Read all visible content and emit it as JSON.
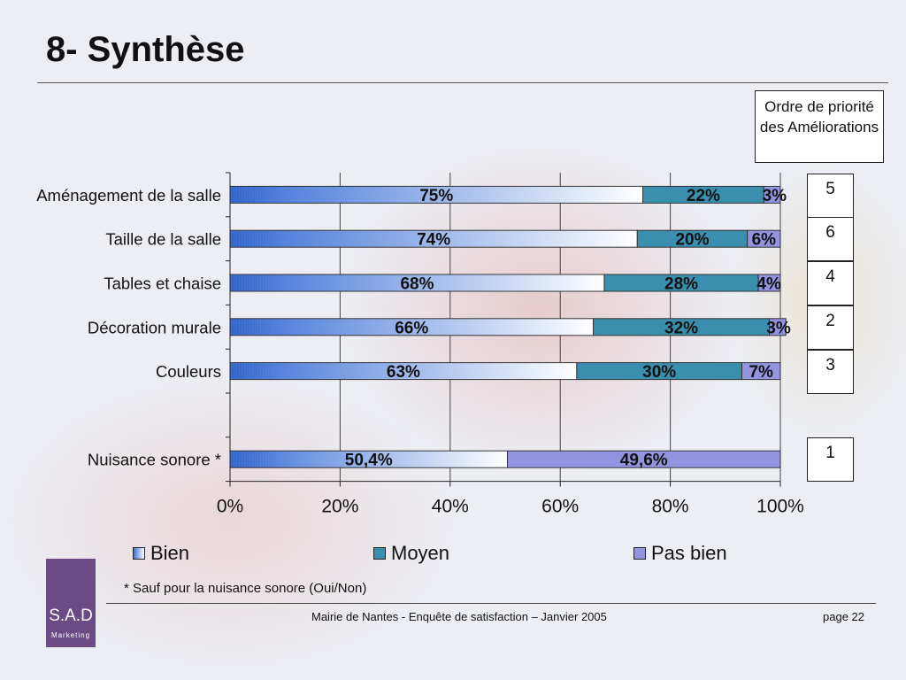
{
  "slide": {
    "title": "8- Synthèse",
    "priority_header": "Ordre de priorité des Améliorations",
    "footnote": "* Sauf pour la nuisance sonore (Oui/Non)",
    "footer_center": "Mairie de Nantes - Enquête de satisfaction – Janvier 2005",
    "footer_page": "page 22",
    "logo_text": "S.A.D",
    "logo_sub": "Marketing"
  },
  "colors": {
    "bien_start": "#3a6fd6",
    "bien_end": "#ffffff",
    "moyen": "#3a8fae",
    "pas_bien": "#9393e0"
  },
  "chart_data": {
    "type": "bar",
    "orientation": "horizontal",
    "stacked": "percent",
    "categories": [
      "Aménagement de la salle",
      "Taille de la salle",
      "Tables et chaise",
      "Décoration murale",
      "Couleurs",
      "",
      "Nuisance sonore *"
    ],
    "series": [
      {
        "name": "Bien",
        "values": [
          75,
          74,
          68,
          66,
          63,
          null,
          50.4
        ],
        "labels": [
          "75%",
          "74%",
          "68%",
          "66%",
          "63%",
          "",
          "50,4%"
        ]
      },
      {
        "name": "Moyen",
        "values": [
          22,
          20,
          28,
          32,
          30,
          null,
          0
        ],
        "labels": [
          "22%",
          "20%",
          "28%",
          "32%",
          "30%",
          "",
          ""
        ]
      },
      {
        "name": "Pas bien",
        "values": [
          3,
          6,
          4,
          3,
          7,
          null,
          49.6
        ],
        "labels": [
          "3%",
          "6%",
          "4%",
          "3%",
          "7%",
          "",
          "49,6%"
        ]
      }
    ],
    "priorities": [
      "5",
      "6",
      "4",
      "2",
      "3",
      "",
      "1"
    ],
    "x_ticks": [
      "0%",
      "20%",
      "40%",
      "60%",
      "80%",
      "100%"
    ],
    "xlim": [
      0,
      100
    ],
    "grid": true,
    "legend": "bottom"
  }
}
